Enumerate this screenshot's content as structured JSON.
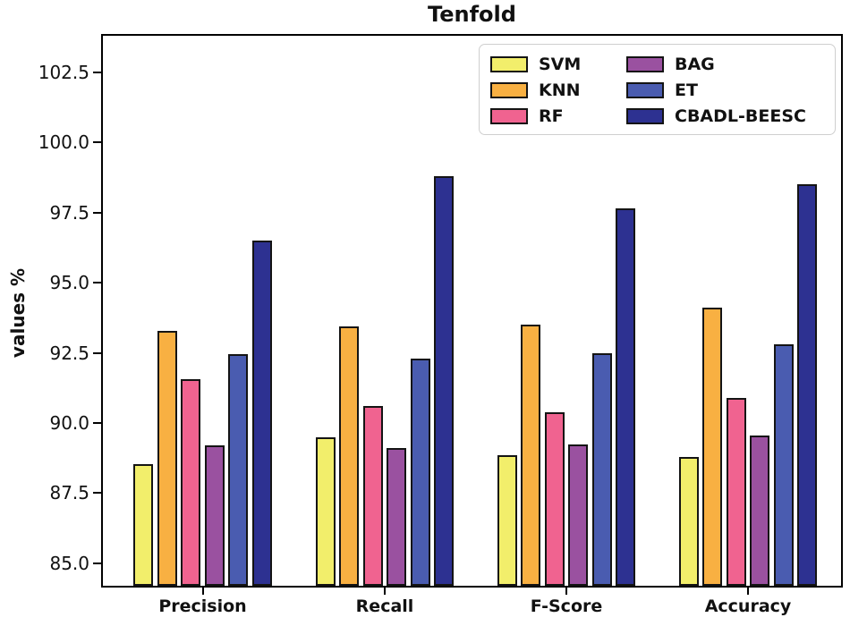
{
  "chart_data": {
    "type": "bar",
    "title": "Tenfold",
    "ylabel": "values %",
    "xlabel": "",
    "categories": [
      "Precision",
      "Recall",
      "F-Score",
      "Accuracy"
    ],
    "series": [
      {
        "name": "SVM",
        "color": "#f2ee6b",
        "values": [
          88.55,
          89.5,
          88.85,
          88.8
        ]
      },
      {
        "name": "KNN",
        "color": "#f8b042",
        "values": [
          93.3,
          93.45,
          93.5,
          94.1
        ]
      },
      {
        "name": "RF",
        "color": "#f06390",
        "values": [
          91.55,
          90.6,
          90.4,
          90.9
        ]
      },
      {
        "name": "BAG",
        "color": "#9a51a0",
        "values": [
          89.2,
          89.1,
          89.25,
          89.55
        ]
      },
      {
        "name": "ET",
        "color": "#4a5cb0",
        "values": [
          92.45,
          92.3,
          92.5,
          92.8
        ]
      },
      {
        "name": "CBADL-BEESC",
        "color": "#2d3191",
        "values": [
          96.5,
          98.8,
          97.65,
          98.5
        ]
      }
    ],
    "ylim": [
      84.2,
      103.8
    ],
    "yticks": [
      85.0,
      87.5,
      90.0,
      92.5,
      95.0,
      97.5,
      100.0,
      102.5
    ],
    "grid": false,
    "legend_position": "upper right",
    "legend_columns": 2,
    "bar_edge_color": "#141414",
    "axis_color": "#000000",
    "background_color": "#ffffff"
  }
}
